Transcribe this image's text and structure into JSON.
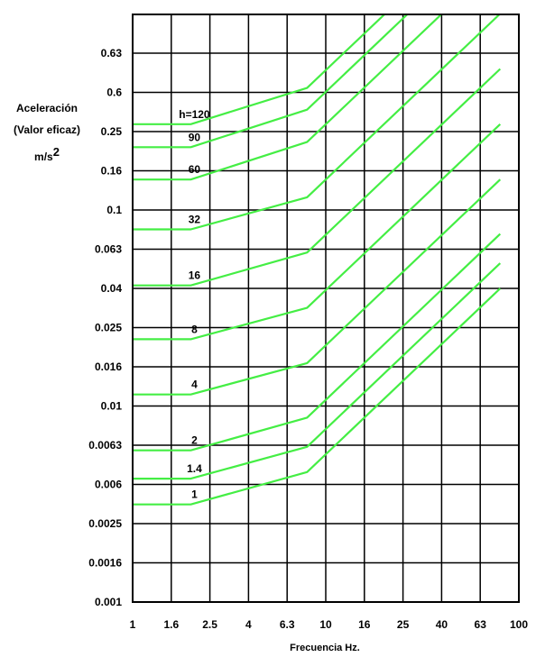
{
  "chart_data": {
    "type": "line",
    "title": "",
    "xlabel": "Frecuencia Hz.",
    "ylabel_line1": "Aceleración",
    "ylabel_line2": "(Valor eficaz)",
    "ylabel_unit": "m/s",
    "ylabel_unit_sup": "2",
    "x_ticks": [
      "1",
      "1.6",
      "2.5",
      "4",
      "6.3",
      "10",
      "16",
      "25",
      "40",
      "63",
      "100"
    ],
    "y_ticks": [
      "0.001",
      "0.0016",
      "0.0025",
      "0.006",
      "0.0063",
      "0.01",
      "0.016",
      "0.025",
      "0.04",
      "0.063",
      "0.1",
      "0.16",
      "0.25",
      "0.6",
      "0.63"
    ],
    "grid": true,
    "line_color": "#44ee44",
    "series": [
      {
        "name": "h=120",
        "points": [
          [
            1,
            0.4
          ],
          [
            2,
            0.4
          ],
          [
            8,
            0.63
          ],
          [
            80,
            6.3
          ]
        ]
      },
      {
        "name": "90",
        "points": [
          [
            1,
            0.3
          ],
          [
            2,
            0.3
          ],
          [
            8,
            0.48
          ],
          [
            80,
            4.8
          ]
        ]
      },
      {
        "name": "60",
        "points": [
          [
            1,
            0.2
          ],
          [
            2,
            0.2
          ],
          [
            8,
            0.32
          ],
          [
            80,
            3.2
          ]
        ]
      },
      {
        "name": "32",
        "points": [
          [
            1,
            0.107
          ],
          [
            2,
            0.107
          ],
          [
            8,
            0.16
          ],
          [
            80,
            1.6
          ]
        ]
      },
      {
        "name": "16",
        "points": [
          [
            1,
            0.053
          ],
          [
            2,
            0.053
          ],
          [
            8,
            0.08
          ],
          [
            80,
            0.8
          ]
        ]
      },
      {
        "name": "8",
        "points": [
          [
            1,
            0.027
          ],
          [
            2,
            0.027
          ],
          [
            8,
            0.04
          ],
          [
            80,
            0.4
          ]
        ]
      },
      {
        "name": "4",
        "points": [
          [
            1,
            0.0135
          ],
          [
            2,
            0.0135
          ],
          [
            8,
            0.02
          ],
          [
            80,
            0.2
          ]
        ]
      },
      {
        "name": "2",
        "points": [
          [
            1,
            0.0067
          ],
          [
            2,
            0.0067
          ],
          [
            8,
            0.0101
          ],
          [
            80,
            0.101
          ]
        ]
      },
      {
        "name": "1.4",
        "points": [
          [
            1,
            0.0047
          ],
          [
            2,
            0.0047
          ],
          [
            8,
            0.007
          ],
          [
            80,
            0.07
          ]
        ]
      },
      {
        "name": "1",
        "points": [
          [
            1,
            0.0034
          ],
          [
            2,
            0.0034
          ],
          [
            8,
            0.0051
          ],
          [
            80,
            0.051
          ]
        ]
      }
    ]
  }
}
